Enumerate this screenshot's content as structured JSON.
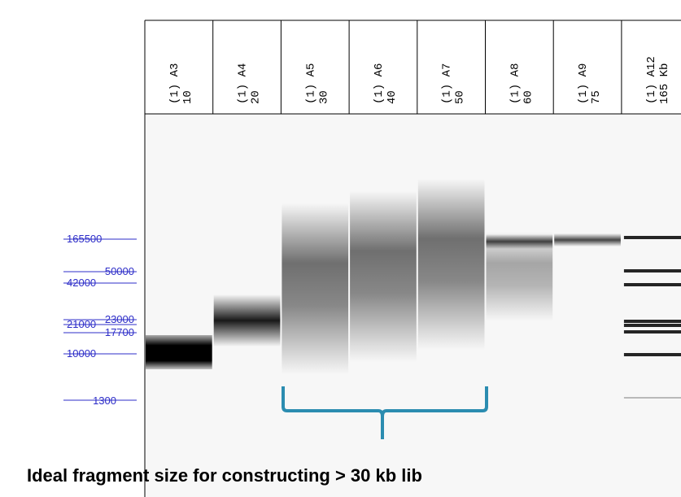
{
  "lanes": [
    {
      "name": "(1) A3",
      "value": "10"
    },
    {
      "name": "(1) A4",
      "value": "20"
    },
    {
      "name": "(1) A5",
      "value": "30"
    },
    {
      "name": "(1) A6",
      "value": "40"
    },
    {
      "name": "(1) A7",
      "value": "50"
    },
    {
      "name": "(1) A8",
      "value": "60"
    },
    {
      "name": "(1) A9",
      "value": "75"
    },
    {
      "name": "(1) A12",
      "value": "165 Kb"
    }
  ],
  "ladder": [
    "165500",
    "50000",
    "42000",
    "23000",
    "21000",
    "17700",
    "10000",
    "1300"
  ],
  "caption": "Ideal fragment size for constructing > 30 kb lib"
}
